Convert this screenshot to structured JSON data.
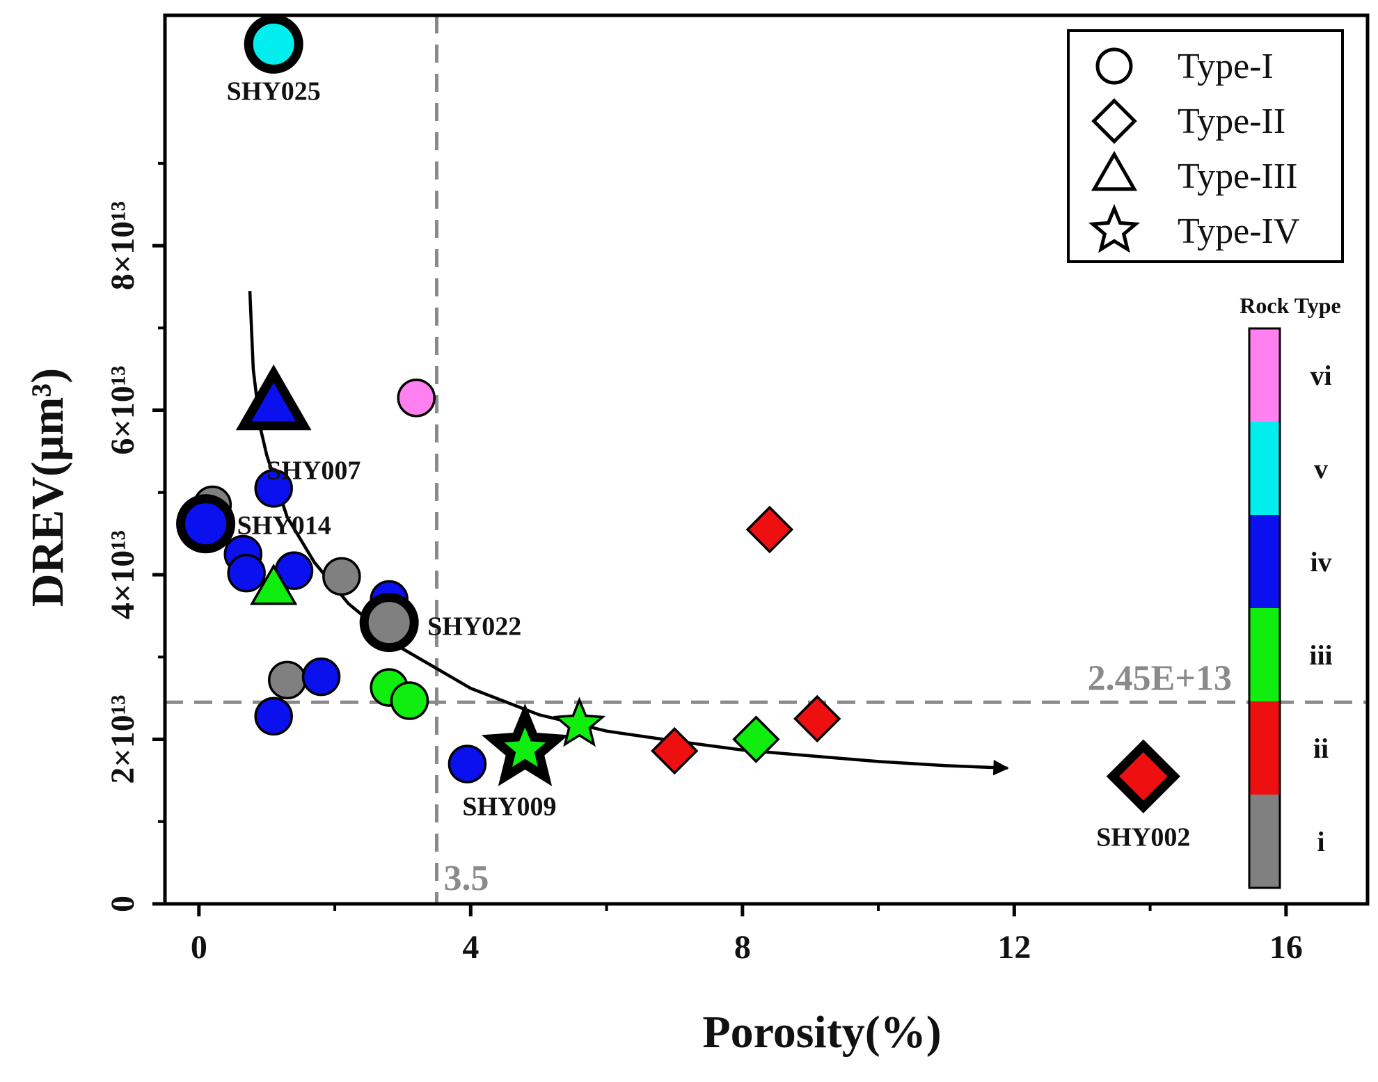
{
  "chart_data": {
    "type": "scatter",
    "xlabel": "Porosity(%)",
    "ylabel": "DREV(μm³)",
    "xlim": [
      -0.5,
      17.2
    ],
    "ylim": [
      0,
      10.8
    ],
    "x_ticks": [
      0,
      4,
      8,
      12,
      16
    ],
    "y_ticks": [
      0,
      2,
      4,
      6,
      8
    ],
    "x_tick_labels": [
      "0",
      "4",
      "8",
      "12",
      "16"
    ],
    "y_tick_labels": [
      "0",
      "2×10¹³",
      "4×10¹³",
      "6×10¹³",
      "8×10¹³"
    ],
    "y_units": "×10¹³ μm³",
    "grid": false,
    "reference_lines": {
      "vertical": {
        "x": 3.5,
        "label": "3.5"
      },
      "horizontal": {
        "y": 2.45,
        "label": "2.45E+13"
      }
    },
    "trend_curve": [
      [
        0.75,
        7.45
      ],
      [
        0.8,
        6.5
      ],
      [
        0.9,
        5.8
      ],
      [
        1.0,
        5.45
      ],
      [
        1.3,
        4.7
      ],
      [
        1.7,
        4.15
      ],
      [
        2.2,
        3.65
      ],
      [
        3.0,
        3.1
      ],
      [
        4.0,
        2.62
      ],
      [
        5.0,
        2.3
      ],
      [
        6.0,
        2.1
      ],
      [
        7.0,
        1.98
      ],
      [
        8.0,
        1.87
      ],
      [
        9.0,
        1.8
      ],
      [
        10.0,
        1.73
      ],
      [
        11.0,
        1.68
      ],
      [
        11.9,
        1.65
      ]
    ],
    "legend": {
      "placement": "top-right",
      "entries": [
        {
          "shape": "circle",
          "label": "Type-I"
        },
        {
          "shape": "diamond",
          "label": "Type-II"
        },
        {
          "shape": "triangle",
          "label": "Type-III"
        },
        {
          "shape": "star",
          "label": "Type-IV"
        }
      ]
    },
    "colorbar": {
      "title": "Rock Type",
      "categories": [
        {
          "label": "vi",
          "color": "#ff80ee"
        },
        {
          "label": "v",
          "color": "#00eeee"
        },
        {
          "label": "iv",
          "color": "#0a10ee"
        },
        {
          "label": "iii",
          "color": "#10ee10"
        },
        {
          "label": "ii",
          "color": "#ee1010"
        },
        {
          "label": "i",
          "color": "#808080"
        }
      ]
    },
    "points": [
      {
        "x": 1.1,
        "y": 10.45,
        "shape": "circle",
        "rock": "v",
        "highlight": true,
        "label": "SHY025"
      },
      {
        "x": 3.2,
        "y": 6.15,
        "shape": "circle",
        "rock": "vi"
      },
      {
        "x": 1.1,
        "y": 6.05,
        "shape": "triangle",
        "rock": "iv",
        "highlight": true,
        "label": "SHY007"
      },
      {
        "x": 1.1,
        "y": 5.05,
        "shape": "circle",
        "rock": "iv"
      },
      {
        "x": 0.2,
        "y": 4.85,
        "shape": "circle",
        "rock": "i"
      },
      {
        "x": 0.1,
        "y": 4.62,
        "shape": "circle",
        "rock": "iv",
        "highlight": true,
        "label": "SHY014"
      },
      {
        "x": 0.65,
        "y": 4.25,
        "shape": "circle",
        "rock": "iv"
      },
      {
        "x": 0.7,
        "y": 4.02,
        "shape": "circle",
        "rock": "iv"
      },
      {
        "x": 1.4,
        "y": 4.05,
        "shape": "circle",
        "rock": "iv"
      },
      {
        "x": 2.1,
        "y": 3.98,
        "shape": "circle",
        "rock": "i"
      },
      {
        "x": 1.1,
        "y": 3.82,
        "shape": "triangle",
        "rock": "iii"
      },
      {
        "x": 2.8,
        "y": 3.7,
        "shape": "circle",
        "rock": "iv"
      },
      {
        "x": 2.8,
        "y": 3.42,
        "shape": "circle",
        "rock": "i",
        "highlight": true,
        "label": "SHY022"
      },
      {
        "x": 1.3,
        "y": 2.72,
        "shape": "circle",
        "rock": "i"
      },
      {
        "x": 1.8,
        "y": 2.76,
        "shape": "circle",
        "rock": "iv"
      },
      {
        "x": 2.8,
        "y": 2.63,
        "shape": "circle",
        "rock": "iii"
      },
      {
        "x": 3.1,
        "y": 2.47,
        "shape": "circle",
        "rock": "iii"
      },
      {
        "x": 1.1,
        "y": 2.28,
        "shape": "circle",
        "rock": "iv"
      },
      {
        "x": 5.6,
        "y": 2.18,
        "shape": "star",
        "rock": "iii"
      },
      {
        "x": 4.8,
        "y": 1.88,
        "shape": "star",
        "rock": "iii",
        "highlight": true,
        "label": "SHY009"
      },
      {
        "x": 3.95,
        "y": 1.7,
        "shape": "circle",
        "rock": "iv"
      },
      {
        "x": 7.0,
        "y": 1.86,
        "shape": "diamond",
        "rock": "ii"
      },
      {
        "x": 8.2,
        "y": 2.0,
        "shape": "diamond",
        "rock": "iii"
      },
      {
        "x": 9.1,
        "y": 2.25,
        "shape": "diamond",
        "rock": "ii"
      },
      {
        "x": 8.4,
        "y": 4.55,
        "shape": "diamond",
        "rock": "ii"
      },
      {
        "x": 13.9,
        "y": 1.55,
        "shape": "diamond",
        "rock": "ii",
        "highlight": true,
        "label": "SHY002"
      }
    ]
  }
}
